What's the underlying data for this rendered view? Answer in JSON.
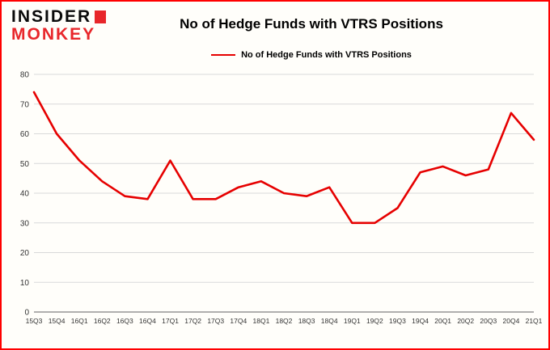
{
  "logo": {
    "line1": "INSIDER",
    "line2": "MONKEY"
  },
  "header": {
    "title": "No of Hedge Funds with VTRS Positions"
  },
  "legend": {
    "label": "No of Hedge Funds with VTRS Positions"
  },
  "colors": {
    "line": "#e60000",
    "border": "#ff0000",
    "grid": "#d9d9d9",
    "axis": "#808080",
    "tick_text": "#333333",
    "logo_red": "#e8262a"
  },
  "chart_data": {
    "type": "line",
    "title": "No of Hedge Funds with VTRS Positions",
    "legend_entries": [
      "No of Hedge Funds with VTRS Positions"
    ],
    "legend_position": "top",
    "grid": true,
    "xlabel": "",
    "ylabel": "",
    "ylim": [
      0,
      80
    ],
    "yticks": [
      0,
      10,
      20,
      30,
      40,
      50,
      60,
      70,
      80
    ],
    "categories": [
      "15Q3",
      "15Q4",
      "16Q1",
      "16Q2",
      "16Q3",
      "16Q4",
      "17Q1",
      "17Q2",
      "17Q3",
      "17Q4",
      "18Q1",
      "18Q2",
      "18Q3",
      "18Q4",
      "19Q1",
      "19Q2",
      "19Q3",
      "19Q4",
      "20Q1",
      "20Q2",
      "20Q3",
      "20Q4",
      "21Q1"
    ],
    "values": [
      74,
      60,
      51,
      44,
      39,
      38,
      51,
      38,
      38,
      42,
      44,
      40,
      39,
      42,
      30,
      30,
      35,
      47,
      49,
      46,
      48,
      67,
      58
    ]
  }
}
